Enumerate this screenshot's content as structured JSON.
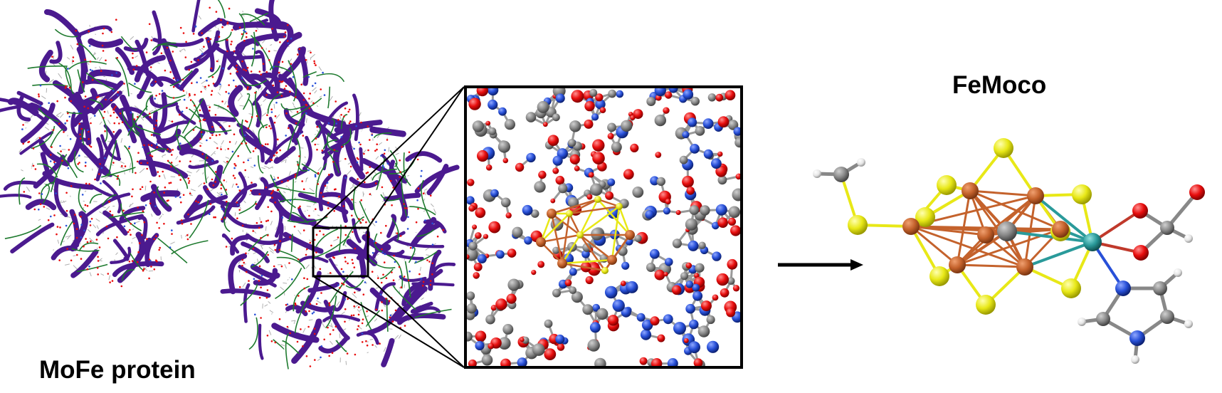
{
  "labels": {
    "protein": "MoFe protein",
    "cofactor": "FeMoco"
  },
  "panels": [
    {
      "name": "mofe-protein-structure",
      "depicts": "protein ribbon with surrounding water molecules"
    },
    {
      "name": "zoomed-active-site",
      "depicts": "ball-and-stick view around the cofactor"
    },
    {
      "name": "femoco-cluster",
      "depicts": "ball-and-stick model of the FeMoco cluster"
    }
  ],
  "colors": {
    "ribbon": "#4b1a8f",
    "backbone": "#1e7a2e",
    "oxygen": "#e80d0d",
    "nitrogen": "#2850d8",
    "carbon": "#8a8a8a",
    "hydrogen": "#e6e6e6",
    "sulfur": "#e8e817",
    "iron": "#c4622c",
    "molybdenum": "#2a9a9a",
    "frame": "#000000"
  },
  "icons": {
    "arrow": "right-arrow-icon"
  }
}
